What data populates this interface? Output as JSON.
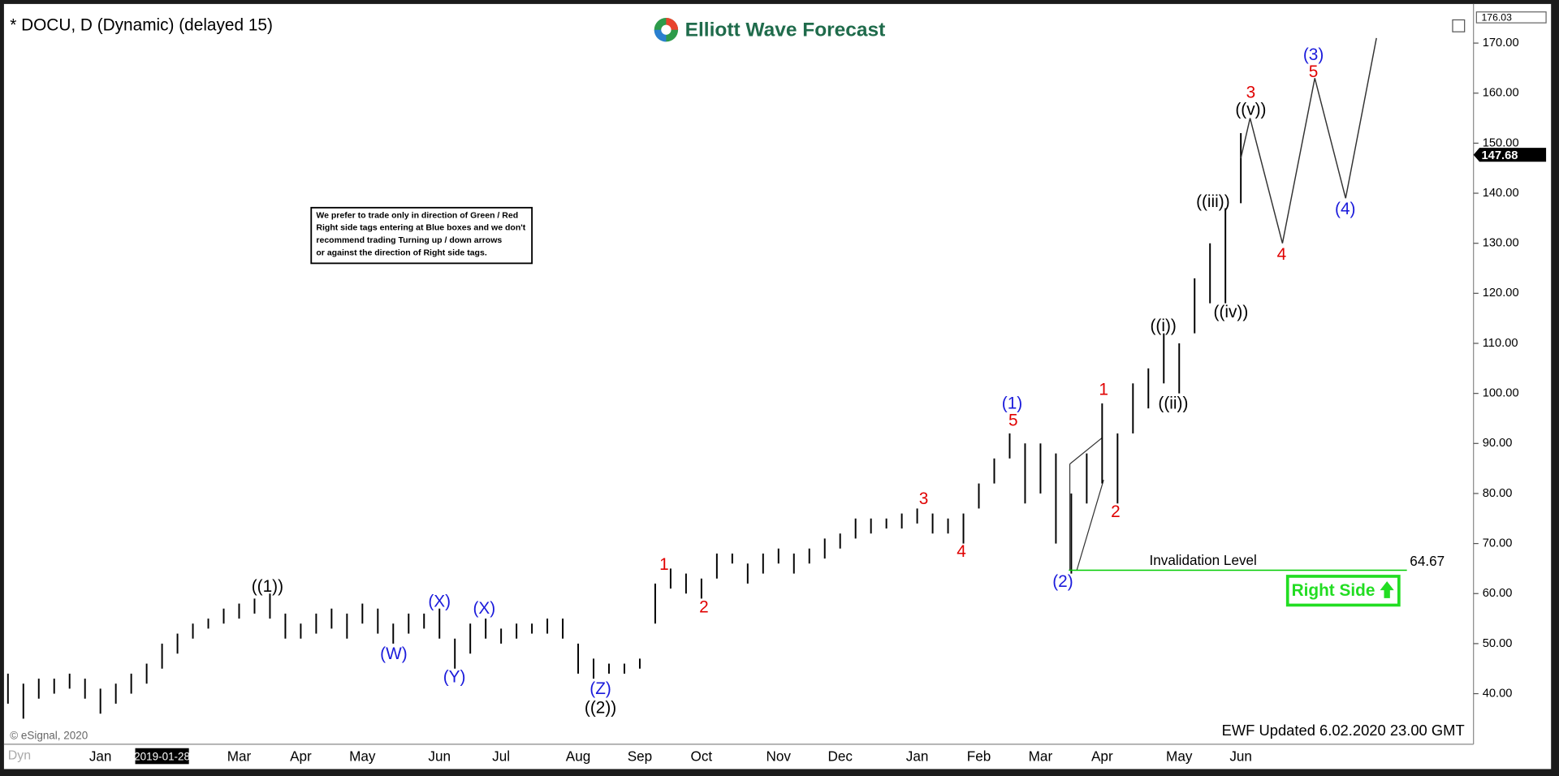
{
  "chart_data": {
    "type": "ohlc",
    "title": "* DOCU, D (Dynamic) (delayed 15)",
    "brand": "Elliott Wave Forecast",
    "note": [
      "We prefer to trade only in direction of Green / Red",
      "Right side tags entering at Blue boxes and we don't",
      "recommend trading Turning up / down arrows",
      "or against the direction of Right side tags."
    ],
    "categories": [
      null,
      null,
      null,
      null,
      null,
      null,
      "Jan",
      null,
      null,
      null,
      "2019-01-28",
      null,
      null,
      null,
      null,
      "Mar",
      null,
      null,
      null,
      "Apr",
      null,
      null,
      null,
      "May",
      null,
      null,
      null,
      null,
      "Jun",
      null,
      null,
      null,
      "Jul",
      null,
      null,
      null,
      null,
      "Aug",
      null,
      null,
      null,
      "Sep",
      null,
      null,
      null,
      "Oct",
      null,
      null,
      null,
      null,
      "Nov",
      null,
      null,
      null,
      "Dec",
      null,
      null,
      null,
      null,
      "Jan",
      null,
      null,
      null,
      "Feb",
      null,
      null,
      null,
      "Mar",
      null,
      null,
      null,
      "Apr",
      null,
      null,
      null,
      null,
      "May",
      null,
      null,
      null,
      "Jun"
    ],
    "high": [
      44,
      42,
      43,
      43,
      44,
      43,
      41,
      42,
      44,
      46,
      50,
      52,
      54,
      55,
      57,
      58,
      59,
      60,
      56,
      54,
      56,
      57,
      56,
      58,
      57,
      54,
      56,
      56,
      57,
      51,
      54,
      55,
      53,
      54,
      54,
      55,
      55,
      50,
      47,
      46,
      46,
      47,
      62,
      65,
      64,
      63,
      68,
      68,
      66,
      68,
      69,
      68,
      69,
      71,
      72,
      75,
      75,
      75,
      76,
      77,
      76,
      75,
      76,
      82,
      87,
      92,
      90,
      90,
      88,
      80,
      88,
      98,
      92,
      102,
      105,
      112,
      110,
      123,
      130,
      137,
      152
    ],
    "low": [
      38,
      35,
      39,
      40,
      41,
      39,
      36,
      38,
      40,
      42,
      45,
      48,
      51,
      53,
      54,
      55,
      56,
      55,
      51,
      51,
      52,
      53,
      51,
      54,
      52,
      50,
      52,
      53,
      51,
      45,
      48,
      51,
      50,
      51,
      52,
      52,
      51,
      44,
      43,
      44,
      44,
      45,
      54,
      61,
      60,
      59,
      63,
      66,
      62,
      64,
      66,
      64,
      66,
      67,
      69,
      71,
      72,
      73,
      73,
      74,
      72,
      72,
      70,
      77,
      82,
      87,
      78,
      80,
      70,
      64,
      78,
      82,
      78,
      92,
      97,
      102,
      100,
      112,
      118,
      118,
      138
    ],
    "color": "#000000",
    "projection": {
      "x": [
        80,
        80.6,
        82.7,
        84.8,
        86.8,
        88.8
      ],
      "values": [
        147,
        155,
        130,
        163,
        139,
        171
      ],
      "color": "#333333"
    },
    "last_price": 147.68,
    "top_price": 176.03,
    "invalidation": {
      "label": "Invalidation Level",
      "value": 64.67,
      "color": "#00cc00"
    },
    "right_side": {
      "label": "Right Side",
      "color": "#22dd22"
    },
    "ylim": [
      29.9,
      176.03
    ],
    "yticks": [
      {
        "value": 40,
        "label": "40.00"
      },
      {
        "value": 50,
        "label": "50.00"
      },
      {
        "value": 60,
        "label": "60.00"
      },
      {
        "value": 70,
        "label": "70.00"
      },
      {
        "value": 80,
        "label": "80.00"
      },
      {
        "value": 90,
        "label": "90.00"
      },
      {
        "value": 100,
        "label": "100.00"
      },
      {
        "value": 110,
        "label": "110.00"
      },
      {
        "value": 120,
        "label": "120.00"
      },
      {
        "value": 130,
        "label": "130.00"
      },
      {
        "value": 140,
        "label": "140.00"
      },
      {
        "value": 150,
        "label": "150.00"
      },
      {
        "value": 160,
        "label": "160.00"
      },
      {
        "value": 170,
        "label": "170.00"
      }
    ],
    "wave_labels": [
      {
        "text": "((1))",
        "color": "#000000"
      },
      {
        "text": "(W)",
        "color": "#1a1adb"
      },
      {
        "text": "(X)",
        "color": "#1a1adb"
      },
      {
        "text": "(Y)",
        "color": "#1a1adb"
      },
      {
        "text": "(X)",
        "color": "#1a1adb"
      },
      {
        "text": "(Z)",
        "color": "#1a1adb"
      },
      {
        "text": "((2))",
        "color": "#000000"
      },
      {
        "text": "1",
        "color": "#e00000"
      },
      {
        "text": "2",
        "color": "#e00000"
      },
      {
        "text": "3",
        "color": "#e00000"
      },
      {
        "text": "4",
        "color": "#e00000"
      },
      {
        "text": "5",
        "color": "#e00000"
      },
      {
        "text": "(1)",
        "color": "#1a1adb"
      },
      {
        "text": "(2)",
        "color": "#1a1adb"
      },
      {
        "text": "1",
        "color": "#e00000"
      },
      {
        "text": "2",
        "color": "#e00000"
      },
      {
        "text": "((i))",
        "color": "#000000"
      },
      {
        "text": "((ii))",
        "color": "#000000"
      },
      {
        "text": "((iii))",
        "color": "#000000"
      },
      {
        "text": "((iv))",
        "color": "#000000"
      },
      {
        "text": "((v))",
        "color": "#000000"
      },
      {
        "text": "3",
        "color": "#e00000"
      },
      {
        "text": "4",
        "color": "#e00000"
      },
      {
        "text": "5",
        "color": "#e00000"
      },
      {
        "text": "(3)",
        "color": "#1a1adb"
      },
      {
        "text": "(4)",
        "color": "#1a1adb"
      }
    ],
    "copyright": "© eSignal, 2020",
    "updated": "EWF Updated 6.02.2020 23.00 GMT",
    "watermark": "Dyn"
  }
}
